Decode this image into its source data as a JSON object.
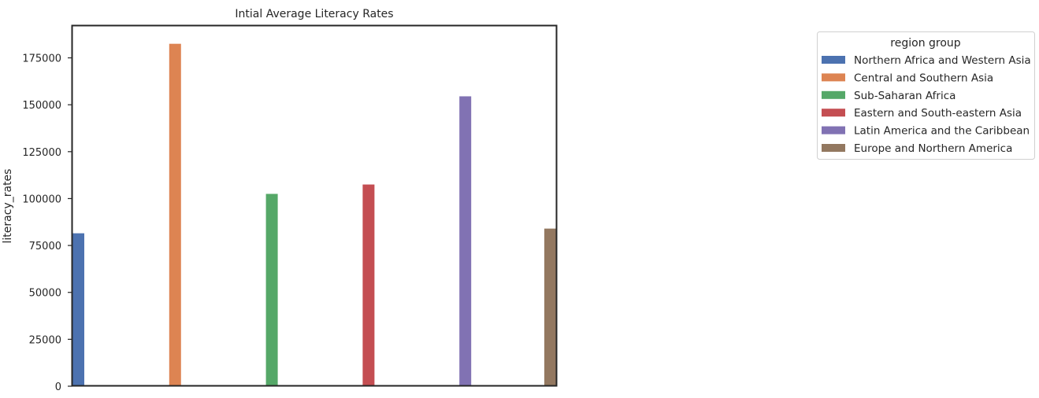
{
  "chart_data": {
    "type": "bar",
    "title": "Intial Average Literacy Rates",
    "xlabel": "",
    "ylabel": "literacy_rates",
    "ylim": [
      0,
      192000
    ],
    "yticks": [
      0,
      25000,
      50000,
      75000,
      100000,
      125000,
      150000,
      175000
    ],
    "yticklabels": [
      "0",
      "25000",
      "50000",
      "75000",
      "100000",
      "125000",
      "150000",
      "175000"
    ],
    "grid": false,
    "legend": {
      "title": "region group",
      "placement": "right"
    },
    "series": [
      {
        "name": "Northern Africa and Western Asia",
        "value": 81500,
        "color": "#4c72b0"
      },
      {
        "name": "Central and Southern Asia",
        "value": 182500,
        "color": "#dd8452"
      },
      {
        "name": "Sub-Saharan Africa",
        "value": 102500,
        "color": "#55a868"
      },
      {
        "name": "Eastern and South-eastern Asia",
        "value": 107500,
        "color": "#c44e52"
      },
      {
        "name": "Latin America and the Caribbean",
        "value": 154500,
        "color": "#8172b3"
      },
      {
        "name": "Europe and Northern America",
        "value": 84000,
        "color": "#937860"
      }
    ]
  }
}
